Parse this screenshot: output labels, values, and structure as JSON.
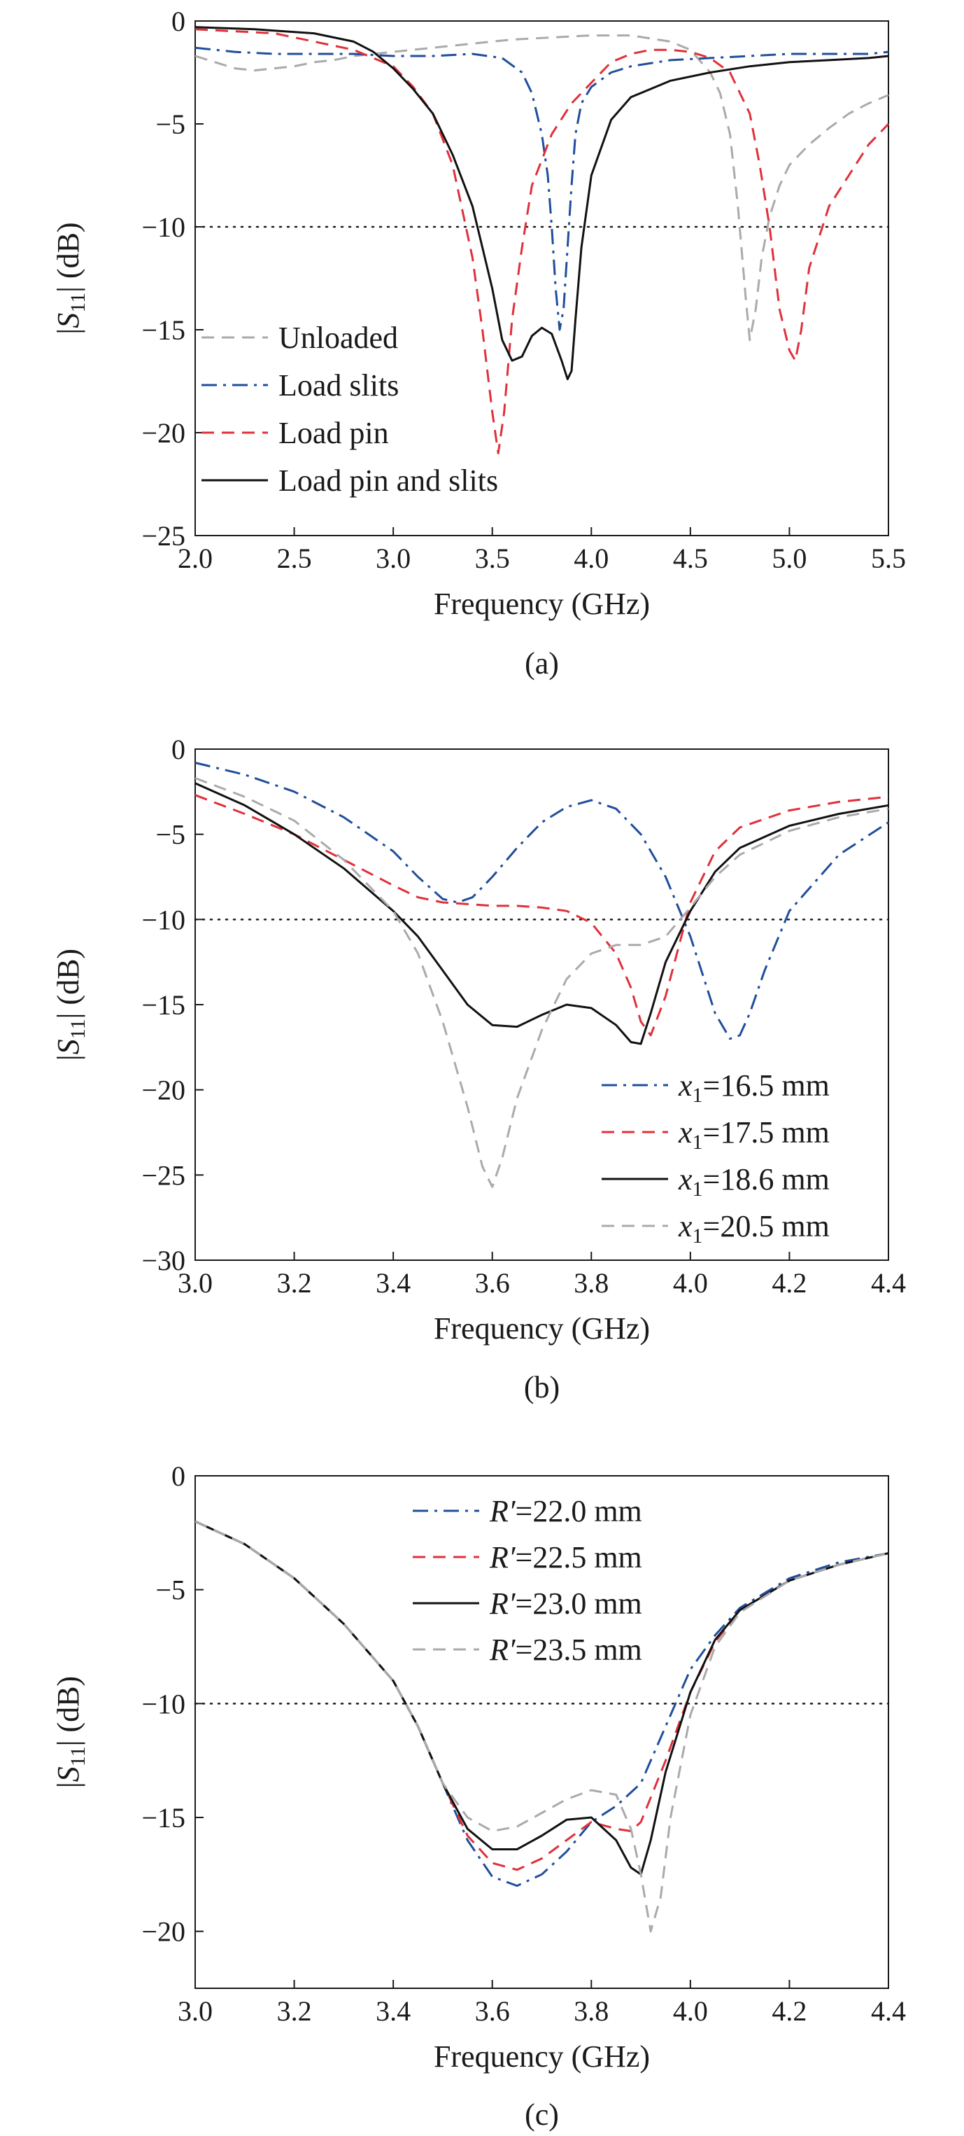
{
  "chart_data": [
    {
      "type": "line",
      "caption": "(a)",
      "xlabel": "Frequency (GHz)",
      "ylabel": "|S11| (dB)",
      "ylabel_parts": {
        "pre": "|",
        "sym": "S",
        "sub": "11",
        "post": "| (dB)"
      },
      "xlim": [
        2.0,
        5.5
      ],
      "ylim": [
        -25,
        0
      ],
      "xticks": [
        2.0,
        2.5,
        3.0,
        3.5,
        4.0,
        4.5,
        5.0,
        5.5
      ],
      "xtick_labels": [
        "2.0",
        "2.5",
        "3.0",
        "3.5",
        "4.0",
        "4.5",
        "5.0",
        "5.5"
      ],
      "yticks": [
        0,
        -5,
        -10,
        -15,
        -20,
        -25
      ],
      "ytick_labels": [
        "0",
        "−5",
        "−10",
        "−15",
        "−20",
        "−25"
      ],
      "reference_line_y": -10,
      "legend_position": "lower-left",
      "series": [
        {
          "name": "Unloaded",
          "color": "#aaaaaa",
          "dash": "dashed",
          "x": [
            2.0,
            2.1,
            2.2,
            2.3,
            2.4,
            2.5,
            2.6,
            2.7,
            2.8,
            2.9,
            3.0,
            3.2,
            3.4,
            3.6,
            3.8,
            4.0,
            4.2,
            4.4,
            4.5,
            4.6,
            4.65,
            4.7,
            4.74,
            4.78,
            4.8,
            4.83,
            4.86,
            4.9,
            4.95,
            5.0,
            5.1,
            5.2,
            5.3,
            5.4,
            5.5
          ],
          "y": [
            -1.7,
            -2.0,
            -2.3,
            -2.4,
            -2.3,
            -2.2,
            -2.0,
            -1.9,
            -1.7,
            -1.6,
            -1.5,
            -1.3,
            -1.1,
            -0.9,
            -0.8,
            -0.7,
            -0.7,
            -1.0,
            -1.4,
            -2.5,
            -3.5,
            -5.5,
            -9.0,
            -13.5,
            -15.5,
            -14.0,
            -11.5,
            -9.5,
            -8.0,
            -7.0,
            -6.0,
            -5.2,
            -4.5,
            -4.0,
            -3.6
          ]
        },
        {
          "name": "Load slits",
          "color": "#1f4e9c",
          "dash": "dashdot",
          "x": [
            2.0,
            2.2,
            2.4,
            2.6,
            2.8,
            3.0,
            3.2,
            3.4,
            3.55,
            3.65,
            3.7,
            3.75,
            3.78,
            3.8,
            3.82,
            3.84,
            3.86,
            3.88,
            3.9,
            3.92,
            3.95,
            4.0,
            4.1,
            4.2,
            4.4,
            4.6,
            4.8,
            5.0,
            5.2,
            5.4,
            5.5
          ],
          "y": [
            -1.3,
            -1.5,
            -1.6,
            -1.6,
            -1.6,
            -1.7,
            -1.7,
            -1.6,
            -1.8,
            -2.5,
            -3.5,
            -5.5,
            -7.5,
            -10.0,
            -13.0,
            -15.0,
            -14.0,
            -11.0,
            -8.0,
            -5.5,
            -4.0,
            -3.2,
            -2.5,
            -2.2,
            -1.9,
            -1.8,
            -1.7,
            -1.6,
            -1.6,
            -1.6,
            -1.5
          ]
        },
        {
          "name": "Load pin",
          "color": "#e0303a",
          "dash": "dashed",
          "x": [
            2.0,
            2.4,
            2.8,
            3.0,
            3.1,
            3.2,
            3.3,
            3.4,
            3.45,
            3.5,
            3.53,
            3.56,
            3.6,
            3.65,
            3.7,
            3.8,
            3.9,
            4.0,
            4.1,
            4.2,
            4.3,
            4.4,
            4.5,
            4.6,
            4.7,
            4.8,
            4.85,
            4.9,
            4.95,
            5.0,
            5.03,
            5.06,
            5.1,
            5.2,
            5.3,
            5.4,
            5.5
          ],
          "y": [
            -0.4,
            -0.6,
            -1.4,
            -2.2,
            -3.2,
            -4.5,
            -7.0,
            -11.5,
            -15.0,
            -19.0,
            -21.0,
            -19.0,
            -14.5,
            -11.0,
            -8.0,
            -5.5,
            -4.0,
            -3.0,
            -2.0,
            -1.6,
            -1.4,
            -1.4,
            -1.5,
            -1.8,
            -2.5,
            -4.5,
            -7.0,
            -10.0,
            -14.0,
            -16.0,
            -16.5,
            -15.0,
            -12.0,
            -9.0,
            -7.5,
            -6.0,
            -5.0
          ]
        },
        {
          "name": "Load pin and slits",
          "color": "#111111",
          "dash": "solid",
          "x": [
            2.0,
            2.3,
            2.6,
            2.8,
            2.9,
            3.0,
            3.1,
            3.2,
            3.3,
            3.4,
            3.5,
            3.55,
            3.6,
            3.65,
            3.7,
            3.75,
            3.8,
            3.85,
            3.88,
            3.9,
            3.92,
            3.95,
            4.0,
            4.1,
            4.2,
            4.4,
            4.6,
            4.8,
            5.0,
            5.2,
            5.4,
            5.5
          ],
          "y": [
            -0.3,
            -0.4,
            -0.6,
            -1.0,
            -1.5,
            -2.3,
            -3.3,
            -4.5,
            -6.5,
            -9.0,
            -13.0,
            -15.5,
            -16.5,
            -16.3,
            -15.3,
            -14.9,
            -15.2,
            -16.5,
            -17.4,
            -17.0,
            -14.5,
            -11.0,
            -7.5,
            -4.8,
            -3.7,
            -2.9,
            -2.5,
            -2.2,
            -2.0,
            -1.9,
            -1.8,
            -1.7
          ]
        }
      ]
    },
    {
      "type": "line",
      "caption": "(b)",
      "xlabel": "Frequency (GHz)",
      "ylabel": "|S11| (dB)",
      "ylabel_parts": {
        "pre": "|",
        "sym": "S",
        "sub": "11",
        "post": "| (dB)"
      },
      "xlim": [
        3.0,
        4.4
      ],
      "ylim": [
        -30,
        0
      ],
      "xticks": [
        3.0,
        3.2,
        3.4,
        3.6,
        3.8,
        4.0,
        4.2,
        4.4
      ],
      "xtick_labels": [
        "3.0",
        "3.2",
        "3.4",
        "3.6",
        "3.8",
        "4.0",
        "4.2",
        "4.4"
      ],
      "yticks": [
        0,
        -5,
        -10,
        -15,
        -20,
        -25,
        -30
      ],
      "ytick_labels": [
        "0",
        "−5",
        "−10",
        "−15",
        "−20",
        "−25",
        "−30"
      ],
      "reference_line_y": -10,
      "legend_position": "lower-right",
      "series": [
        {
          "name": "x1=16.5 mm",
          "legend_sym": "x",
          "legend_sub": "1",
          "legend_rest": "=16.5 mm",
          "color": "#1f4e9c",
          "dash": "dashdot",
          "x": [
            3.0,
            3.1,
            3.2,
            3.3,
            3.4,
            3.45,
            3.5,
            3.53,
            3.56,
            3.6,
            3.65,
            3.7,
            3.75,
            3.8,
            3.85,
            3.9,
            3.95,
            4.0,
            4.05,
            4.08,
            4.1,
            4.12,
            4.15,
            4.2,
            4.3,
            4.4
          ],
          "y": [
            -0.8,
            -1.5,
            -2.5,
            -4.0,
            -6.0,
            -7.5,
            -8.8,
            -9.0,
            -8.7,
            -7.5,
            -5.8,
            -4.3,
            -3.4,
            -3.0,
            -3.5,
            -5.0,
            -7.5,
            -11.0,
            -15.5,
            -17.0,
            -16.8,
            -15.5,
            -13.0,
            -9.5,
            -6.2,
            -4.3
          ]
        },
        {
          "name": "x1=17.5 mm",
          "legend_sym": "x",
          "legend_sub": "1",
          "legend_rest": "=17.5 mm",
          "color": "#e0303a",
          "dash": "dashed",
          "x": [
            3.0,
            3.1,
            3.2,
            3.3,
            3.4,
            3.45,
            3.5,
            3.55,
            3.6,
            3.65,
            3.7,
            3.75,
            3.8,
            3.85,
            3.88,
            3.9,
            3.92,
            3.95,
            4.0,
            4.05,
            4.1,
            4.2,
            4.3,
            4.4
          ],
          "y": [
            -2.7,
            -3.8,
            -5.0,
            -6.5,
            -8.0,
            -8.7,
            -9.0,
            -9.1,
            -9.2,
            -9.2,
            -9.3,
            -9.5,
            -10.2,
            -12.0,
            -14.0,
            -16.0,
            -16.8,
            -14.5,
            -9.0,
            -6.0,
            -4.6,
            -3.6,
            -3.1,
            -2.8
          ]
        },
        {
          "name": "x1=18.6 mm",
          "legend_sym": "x",
          "legend_sub": "1",
          "legend_rest": "=18.6 mm",
          "color": "#111111",
          "dash": "solid",
          "x": [
            3.0,
            3.1,
            3.2,
            3.3,
            3.4,
            3.45,
            3.5,
            3.55,
            3.6,
            3.65,
            3.7,
            3.75,
            3.8,
            3.85,
            3.88,
            3.9,
            3.92,
            3.95,
            4.0,
            4.05,
            4.1,
            4.2,
            4.3,
            4.4
          ],
          "y": [
            -2.0,
            -3.3,
            -5.0,
            -7.0,
            -9.5,
            -11.0,
            -13.0,
            -15.0,
            -16.2,
            -16.3,
            -15.6,
            -15.0,
            -15.2,
            -16.2,
            -17.2,
            -17.3,
            -15.5,
            -12.5,
            -9.5,
            -7.2,
            -5.8,
            -4.5,
            -3.8,
            -3.3
          ]
        },
        {
          "name": "x1=20.5 mm",
          "legend_sym": "x",
          "legend_sub": "1",
          "legend_rest": "=20.5 mm",
          "color": "#aaaaaa",
          "dash": "dashed",
          "x": [
            3.0,
            3.1,
            3.2,
            3.3,
            3.4,
            3.45,
            3.5,
            3.55,
            3.58,
            3.6,
            3.62,
            3.65,
            3.7,
            3.75,
            3.8,
            3.85,
            3.9,
            3.95,
            4.0,
            4.05,
            4.1,
            4.2,
            4.3,
            4.4
          ],
          "y": [
            -1.7,
            -2.8,
            -4.2,
            -6.5,
            -9.5,
            -12.0,
            -16.0,
            -21.0,
            -24.5,
            -25.7,
            -24.0,
            -20.5,
            -16.5,
            -13.5,
            -12.0,
            -11.5,
            -11.5,
            -11.0,
            -9.3,
            -7.5,
            -6.2,
            -4.8,
            -4.0,
            -3.5
          ]
        }
      ]
    },
    {
      "type": "line",
      "caption": "(c)",
      "xlabel": "Frequency (GHz)",
      "ylabel": "|S11| (dB)",
      "ylabel_parts": {
        "pre": "|",
        "sym": "S",
        "sub": "11",
        "post": "| (dB)"
      },
      "xlim": [
        3.0,
        4.4
      ],
      "ylim": [
        -22.5,
        0
      ],
      "xticks": [
        3.0,
        3.2,
        3.4,
        3.6,
        3.8,
        4.0,
        4.2,
        4.4
      ],
      "xtick_labels": [
        "3.0",
        "3.2",
        "3.4",
        "3.6",
        "3.8",
        "4.0",
        "4.2",
        "4.4"
      ],
      "yticks": [
        0,
        -5,
        -10,
        -15,
        -20
      ],
      "ytick_labels": [
        "0",
        "−5",
        "−10",
        "−15",
        "−20"
      ],
      "reference_line_y": -10,
      "legend_position": "top-center",
      "series": [
        {
          "name": "R′=22.0 mm",
          "legend_sym": "R′",
          "legend_rest": "=22.0 mm",
          "color": "#1f4e9c",
          "dash": "dashdot",
          "x": [
            3.0,
            3.1,
            3.2,
            3.3,
            3.4,
            3.45,
            3.5,
            3.55,
            3.6,
            3.65,
            3.7,
            3.75,
            3.8,
            3.85,
            3.9,
            3.95,
            4.0,
            4.05,
            4.1,
            4.2,
            4.3,
            4.4
          ],
          "y": [
            -2.0,
            -3.0,
            -4.5,
            -6.5,
            -9.0,
            -11.0,
            -13.5,
            -16.0,
            -17.6,
            -18.0,
            -17.5,
            -16.5,
            -15.2,
            -14.5,
            -13.5,
            -11.0,
            -8.5,
            -7.0,
            -5.8,
            -4.5,
            -3.8,
            -3.4
          ]
        },
        {
          "name": "R′=22.5 mm",
          "legend_sym": "R′",
          "legend_rest": "=22.5 mm",
          "color": "#e0303a",
          "dash": "dashed",
          "x": [
            3.0,
            3.1,
            3.2,
            3.3,
            3.4,
            3.45,
            3.5,
            3.55,
            3.6,
            3.65,
            3.7,
            3.75,
            3.8,
            3.85,
            3.88,
            3.9,
            3.95,
            4.0,
            4.05,
            4.1,
            4.2,
            4.3,
            4.4
          ],
          "y": [
            -2.0,
            -3.0,
            -4.5,
            -6.5,
            -9.0,
            -11.0,
            -13.5,
            -15.8,
            -17.0,
            -17.3,
            -16.8,
            -16.0,
            -15.2,
            -15.5,
            -15.6,
            -15.2,
            -12.5,
            -9.5,
            -7.3,
            -5.9,
            -4.6,
            -3.9,
            -3.4
          ]
        },
        {
          "name": "R′=23.0 mm",
          "legend_sym": "R′",
          "legend_rest": "=23.0 mm",
          "color": "#111111",
          "dash": "solid",
          "x": [
            3.0,
            3.1,
            3.2,
            3.3,
            3.4,
            3.45,
            3.5,
            3.55,
            3.6,
            3.65,
            3.7,
            3.75,
            3.8,
            3.85,
            3.88,
            3.9,
            3.92,
            3.95,
            4.0,
            4.05,
            4.1,
            4.2,
            4.3,
            4.4
          ],
          "y": [
            -2.0,
            -3.0,
            -4.5,
            -6.5,
            -9.0,
            -11.0,
            -13.5,
            -15.5,
            -16.4,
            -16.4,
            -15.8,
            -15.1,
            -15.0,
            -16.0,
            -17.2,
            -17.5,
            -16.0,
            -13.0,
            -9.5,
            -7.2,
            -5.9,
            -4.6,
            -3.9,
            -3.4
          ]
        },
        {
          "name": "R′=23.5 mm",
          "legend_sym": "R′",
          "legend_rest": "=23.5 mm",
          "color": "#aaaaaa",
          "dash": "dashed",
          "x": [
            3.0,
            3.1,
            3.2,
            3.3,
            3.4,
            3.45,
            3.5,
            3.55,
            3.6,
            3.65,
            3.7,
            3.75,
            3.8,
            3.85,
            3.88,
            3.9,
            3.92,
            3.94,
            3.96,
            4.0,
            4.05,
            4.1,
            4.2,
            4.3,
            4.4
          ],
          "y": [
            -2.0,
            -3.0,
            -4.5,
            -6.5,
            -9.0,
            -11.0,
            -13.5,
            -15.0,
            -15.6,
            -15.4,
            -14.8,
            -14.2,
            -13.8,
            -14.0,
            -15.5,
            -17.5,
            -20.0,
            -18.5,
            -15.0,
            -10.5,
            -7.5,
            -6.0,
            -4.6,
            -3.9,
            -3.4
          ]
        }
      ]
    }
  ]
}
